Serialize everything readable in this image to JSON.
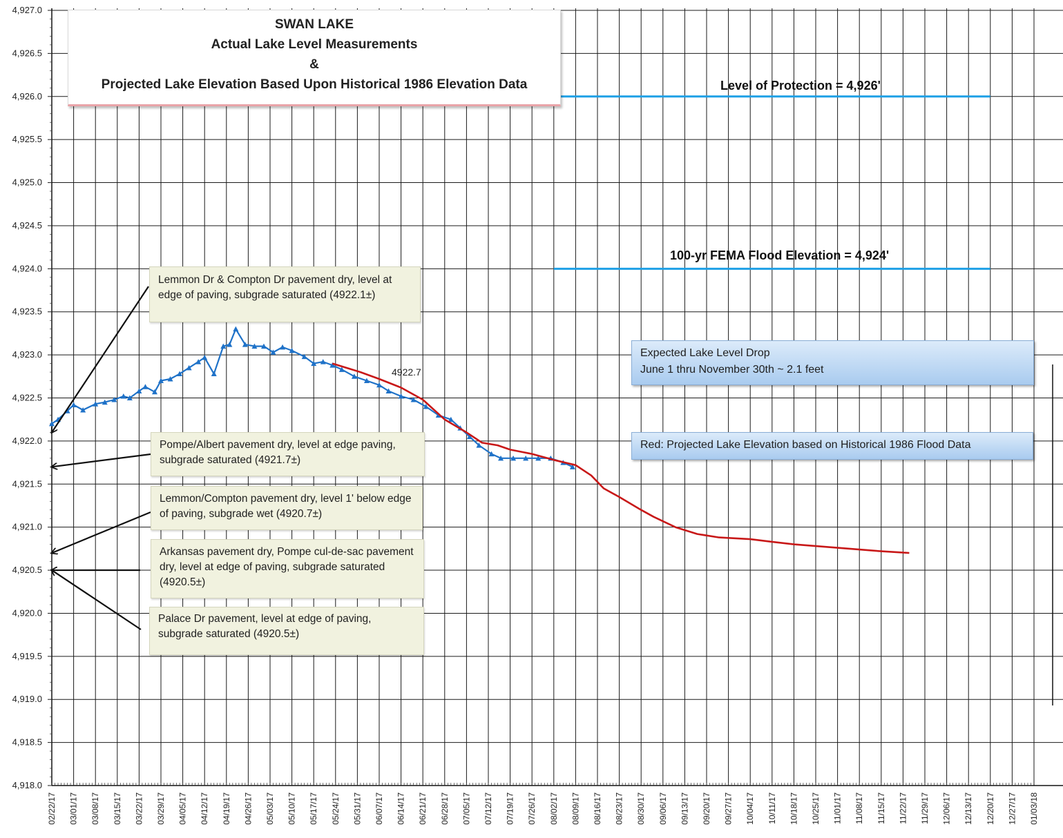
{
  "chart_data": {
    "type": "line",
    "title": [
      "SWAN LAKE",
      "Actual Lake Level Measurements",
      "&",
      "Projected Lake Elevation Based Upon Historical 1986 Elevation  Data"
    ],
    "xlabel": "",
    "ylabel": "",
    "ylim": [
      4918.0,
      4927.0
    ],
    "y_ticks": [
      "4,918.0",
      "4,918.5",
      "4,919.0",
      "4,919.5",
      "4,920.0",
      "4,920.5",
      "4,921.0",
      "4,921.5",
      "4,922.0",
      "4,922.5",
      "4,923.0",
      "4,923.5",
      "4,924.0",
      "4,924.5",
      "4,925.0",
      "4,925.5",
      "4,926.0",
      "4,926.5",
      "4,927.0"
    ],
    "x_ticks": [
      "02/22/17",
      "03/01/17",
      "03/08/17",
      "03/15/17",
      "03/22/17",
      "03/29/17",
      "04/05/17",
      "04/12/17",
      "04/19/17",
      "04/26/17",
      "05/03/17",
      "05/10/17",
      "05/17/17",
      "05/24/17",
      "05/31/17",
      "06/07/17",
      "06/14/17",
      "06/21/17",
      "06/28/17",
      "07/05/17",
      "07/12/17",
      "07/19/17",
      "07/26/17",
      "08/02/17",
      "08/09/17",
      "08/16/17",
      "08/23/17",
      "08/30/17",
      "09/06/17",
      "09/13/17",
      "09/20/17",
      "09/27/17",
      "10/04/17",
      "10/11/17",
      "10/18/17",
      "10/25/17",
      "11/01/17",
      "11/08/17",
      "11/15/17",
      "11/22/17",
      "11/29/17",
      "12/06/17",
      "12/13/17",
      "12/20/17",
      "12/27/17",
      "01/03/18"
    ],
    "grid": true,
    "series": [
      {
        "name": "",
        "color": "#1f72c8",
        "marker": "triangle",
        "x": [
          "02/22/17",
          "02/24/17",
          "02/27/17",
          "03/01/17",
          "03/04/17",
          "03/08/17",
          "03/11/17",
          "03/14/17",
          "03/17/17",
          "03/19/17",
          "03/22/17",
          "03/24/17",
          "03/27/17",
          "03/29/17",
          "04/01/17",
          "04/04/17",
          "04/07/17",
          "04/10/17",
          "04/12/17",
          "04/15/17",
          "04/18/17",
          "04/20/17",
          "04/22/17",
          "04/25/17",
          "04/28/17",
          "05/01/17",
          "05/04/17",
          "05/07/17",
          "05/10/17",
          "05/14/17",
          "05/17/17",
          "05/20/17",
          "05/23/17",
          "05/26/17",
          "05/30/17",
          "06/03/17",
          "06/07/17",
          "06/10/17",
          "06/14/17",
          "06/18/17",
          "06/22/17",
          "06/26/17",
          "06/30/17",
          "07/03/17",
          "07/06/17",
          "07/09/17",
          "07/13/17",
          "07/16/17",
          "07/20/17",
          "07/24/17",
          "07/28/17",
          "08/01/17",
          "08/05/17",
          "08/08/17"
        ],
        "values": [
          4922.2,
          4922.25,
          4922.35,
          4922.42,
          4922.36,
          4922.43,
          4922.45,
          4922.48,
          4922.52,
          4922.5,
          4922.58,
          4922.63,
          4922.57,
          4922.7,
          4922.72,
          4922.78,
          4922.85,
          4922.92,
          4922.97,
          4922.78,
          4923.1,
          4923.12,
          4923.3,
          4923.12,
          4923.1,
          4923.1,
          4923.03,
          4923.09,
          4923.05,
          4922.98,
          4922.9,
          4922.92,
          4922.88,
          4922.83,
          4922.75,
          4922.7,
          4922.65,
          4922.58,
          4922.52,
          4922.48,
          4922.4,
          4922.3,
          4922.25,
          4922.15,
          4922.05,
          4921.95,
          4921.85,
          4921.8,
          4921.8,
          4921.8,
          4921.8,
          4921.8,
          4921.75,
          4921.7
        ]
      },
      {
        "name": "",
        "color": "#c81818",
        "marker": "none",
        "x": [
          "05/23/17",
          "06/01/17",
          "06/07/17",
          "06/14/17",
          "06/21/17",
          "06/28/17",
          "07/05/17",
          "07/10/17",
          "07/15/17",
          "07/19/17",
          "07/26/17",
          "08/02/17",
          "08/09/17",
          "08/14/17",
          "08/18/17",
          "08/23/17",
          "08/30/17",
          "09/03/17",
          "09/10/17",
          "09/17/17",
          "09/24/17",
          "10/04/17",
          "10/11/17",
          "10/18/17",
          "10/25/17",
          "11/01/17",
          "11/08/17",
          "11/15/17",
          "11/24/17"
        ],
        "values": [
          4922.9,
          4922.8,
          4922.72,
          4922.62,
          4922.48,
          4922.25,
          4922.1,
          4921.98,
          4921.95,
          4921.9,
          4921.85,
          4921.78,
          4921.72,
          4921.6,
          4921.45,
          4921.35,
          4921.2,
          4921.12,
          4921.0,
          4920.92,
          4920.88,
          4920.86,
          4920.83,
          4920.8,
          4920.78,
          4920.76,
          4920.74,
          4920.72,
          4920.7
        ]
      }
    ],
    "reference_lines": [
      {
        "label": "Level of Protection = 4,926'",
        "value": 4926.0,
        "x_start": "08/02/17",
        "x_end": "12/20/17",
        "color": "#1ea0e6"
      },
      {
        "label": "100-yr FEMA Flood Elevation = 4,924'",
        "value": 4924.0,
        "x_start": "08/02/17",
        "x_end": "12/20/17",
        "color": "#1ea0e6"
      }
    ],
    "data_labels": [
      {
        "text": "4922.7",
        "x": "06/07/17",
        "y": 4922.75
      }
    ],
    "annotations": [
      {
        "text": "Lemmon Dr & Compton Dr pavement dry, level at edge of paving,  subgrade saturated (4922.1±)",
        "points_to": 4922.1
      },
      {
        "text": "Pompe/Albert pavement dry, level at edge paving, subgrade saturated (4921.7±)",
        "points_to": 4921.7
      },
      {
        "text": "Lemmon/Compton  pavement dry, level 1' below edge of paving,  subgrade wet (4920.7±)",
        "points_to": 4920.7
      },
      {
        "text": "Arkansas pavement dry, Pompe cul-de-sac pavement dry, level at edge of paving,  subgrade saturated (4920.5±)",
        "points_to": 4920.5
      },
      {
        "text": "Palace Dr pavement, level at edge of paving, subgrade saturated (4920.5±)",
        "points_to": 4920.5
      }
    ],
    "notes": [
      {
        "lines": [
          "Expected Lake Level Drop",
          "June 1 thru November 30th ~ 2.1 feet"
        ]
      },
      {
        "lines": [
          "Red: Projected Lake Elevation based on Historical 1986 Flood Data"
        ]
      }
    ]
  }
}
